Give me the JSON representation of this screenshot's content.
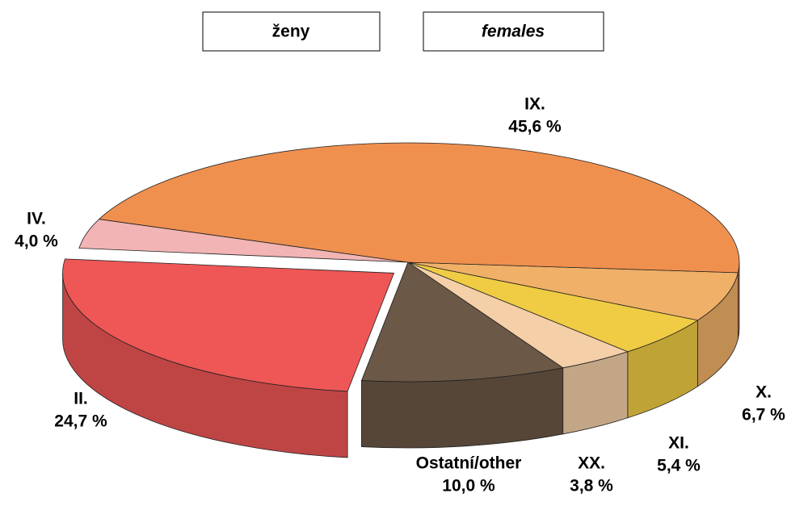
{
  "chart_data": {
    "type": "pie",
    "title": "ženy",
    "subtitle": "females",
    "categories": [
      "X.",
      "XI.",
      "XX.",
      "Ostatní/other",
      "II.",
      "IV.",
      "IX."
    ],
    "values": [
      6.7,
      5.4,
      3.8,
      10.0,
      24.7,
      4.0,
      45.6
    ],
    "value_labels": [
      "6,7 %",
      "5,4 %",
      "3,8 %",
      "10,0 %",
      "24,7 %",
      "4,0 %",
      "45,6 %"
    ],
    "colors": [
      "#f0b068",
      "#f0cc44",
      "#f4cfa8",
      "#6b5846",
      "#ef5656",
      "#f2b4b4",
      "#f0904f"
    ]
  }
}
